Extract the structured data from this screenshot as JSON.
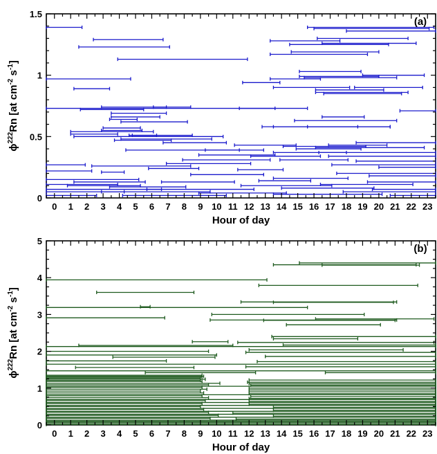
{
  "chart_data": [
    {
      "type": "interval",
      "panel_label": "(a)",
      "xlabel": "Hour of day",
      "ylabel_parts": {
        "pre": "ϕ",
        "sup1": "222",
        "mid": "Rn [at cm",
        "sup2": "-2",
        "mid2": " s",
        "sup3": "-1",
        "post": "]"
      },
      "xlim": [
        -0.5,
        23.5
      ],
      "ylim": [
        0,
        1.5
      ],
      "xticks": [
        "0",
        "1",
        "2",
        "3",
        "4",
        "5",
        "6",
        "7",
        "8",
        "9",
        "10",
        "11",
        "12",
        "13",
        "14",
        "15",
        "16",
        "17",
        "18",
        "19",
        "20",
        "21",
        "22",
        "23"
      ],
      "yticks": [
        {
          "v": 0,
          "t": "0"
        },
        {
          "v": 0.5,
          "t": "0.5"
        },
        {
          "v": 1,
          "t": "1"
        },
        {
          "v": 1.5,
          "t": "1.5"
        }
      ],
      "color": "#1a1acc",
      "intervals": [
        [
          -0.5,
          1.7,
          1.39
        ],
        [
          15.6,
          23.4,
          1.39
        ],
        [
          16.0,
          23.1,
          1.38
        ],
        [
          18.0,
          23.5,
          1.36
        ],
        [
          2.4,
          6.7,
          1.29
        ],
        [
          16.2,
          21.8,
          1.3
        ],
        [
          1.5,
          7.1,
          1.23
        ],
        [
          14.5,
          20.6,
          1.25
        ],
        [
          13.3,
          17.6,
          1.28
        ],
        [
          16.5,
          22.3,
          1.26
        ],
        [
          13.3,
          19.3,
          1.17
        ],
        [
          14.6,
          20.0,
          1.19
        ],
        [
          3.9,
          11.9,
          1.13
        ],
        [
          -0.5,
          4.7,
          0.97
        ],
        [
          15.1,
          18.9,
          1.03
        ],
        [
          15.1,
          20.0,
          0.99
        ],
        [
          19.0,
          22.8,
          1.0
        ],
        [
          15.4,
          21.1,
          0.98
        ],
        [
          11.6,
          13.9,
          0.94
        ],
        [
          13.3,
          16.4,
          0.97
        ],
        [
          1.2,
          3.4,
          0.89
        ],
        [
          13.5,
          18.2,
          0.9
        ],
        [
          18.5,
          22.7,
          0.9
        ],
        [
          16.1,
          20.3,
          0.88
        ],
        [
          16.1,
          21.8,
          0.86
        ],
        [
          16.6,
          21.4,
          0.85
        ],
        [
          -0.5,
          15.6,
          0.73
        ],
        [
          1.6,
          5.5,
          0.72
        ],
        [
          2.9,
          6.9,
          0.74
        ],
        [
          6.1,
          8.4,
          0.74
        ],
        [
          11.4,
          13.6,
          0.73
        ],
        [
          21.3,
          23.5,
          0.71
        ],
        [
          3.5,
          6.9,
          0.69
        ],
        [
          3.5,
          6.5,
          0.66
        ],
        [
          3.4,
          5.1,
          0.64
        ],
        [
          4.1,
          8.2,
          0.62
        ],
        [
          16.5,
          19.1,
          0.66
        ],
        [
          14.8,
          21.1,
          0.63
        ],
        [
          15.6,
          20.7,
          0.58
        ],
        [
          13.5,
          18.7,
          0.58
        ],
        [
          12.8,
          20.7,
          0.58
        ],
        [
          3.0,
          5.3,
          0.57
        ],
        [
          2.9,
          5.4,
          0.55
        ],
        [
          1.0,
          6.1,
          0.54
        ],
        [
          1.0,
          3.9,
          0.52
        ],
        [
          4.6,
          6.3,
          0.51
        ],
        [
          4.8,
          8.5,
          0.51
        ],
        [
          1.2,
          10.4,
          0.5
        ],
        [
          4.1,
          9.7,
          0.48
        ],
        [
          3.7,
          7.2,
          0.47
        ],
        [
          6.7,
          10.6,
          0.45
        ],
        [
          18.6,
          23.5,
          0.45
        ],
        [
          11.1,
          14.9,
          0.43
        ],
        [
          14.1,
          19.2,
          0.42
        ],
        [
          16.9,
          20.5,
          0.43
        ],
        [
          4.4,
          11.4,
          0.39
        ],
        [
          9.3,
          12.9,
          0.39
        ],
        [
          14.9,
          18.9,
          0.4
        ],
        [
          16.1,
          22.8,
          0.41
        ],
        [
          13.5,
          18.0,
          0.37
        ],
        [
          16.3,
          23.5,
          0.37
        ],
        [
          8.9,
          13.6,
          0.35
        ],
        [
          12.1,
          16.4,
          0.34
        ],
        [
          16.9,
          23.5,
          0.34
        ],
        [
          7.9,
          13.3,
          0.31
        ],
        [
          13.9,
          18.1,
          0.31
        ],
        [
          18.6,
          23.5,
          0.3
        ],
        [
          6.9,
          12.1,
          0.28
        ],
        [
          -0.5,
          1.9,
          0.27
        ],
        [
          2.3,
          8.4,
          0.26
        ],
        [
          17.1,
          23.5,
          0.27
        ],
        [
          5.8,
          8.9,
          0.24
        ],
        [
          11.3,
          14.1,
          0.23
        ],
        [
          20.0,
          23.5,
          0.25
        ],
        [
          -0.5,
          2.3,
          0.22
        ],
        [
          2.9,
          4.3,
          0.21
        ],
        [
          8.4,
          12.9,
          0.19
        ],
        [
          17.4,
          23.5,
          0.2
        ],
        [
          19.4,
          23.5,
          0.18
        ],
        [
          -0.5,
          5.2,
          0.15
        ],
        [
          13.5,
          18.1,
          0.16
        ],
        [
          1.2,
          5.6,
          0.13
        ],
        [
          6.6,
          11.1,
          0.13
        ],
        [
          12.6,
          15.8,
          0.14
        ],
        [
          19.3,
          23.5,
          0.13
        ],
        [
          -0.5,
          3.9,
          0.11
        ],
        [
          0.8,
          5.3,
          0.1
        ],
        [
          3.4,
          8.1,
          0.09
        ],
        [
          11.5,
          17.1,
          0.1
        ],
        [
          16.4,
          22.1,
          0.11
        ],
        [
          -0.5,
          6.6,
          0.07
        ],
        [
          5.7,
          12.3,
          0.07
        ],
        [
          14.0,
          19.7,
          0.08
        ],
        [
          19.6,
          23.5,
          0.07
        ],
        [
          -0.5,
          4.3,
          0.05
        ],
        [
          2.9,
          9.6,
          0.05
        ],
        [
          8.9,
          14.3,
          0.04
        ],
        [
          17.8,
          23.5,
          0.05
        ],
        [
          -0.5,
          2.6,
          0.02
        ],
        [
          4.2,
          10.6,
          0.02
        ],
        [
          13.5,
          20.2,
          0.03
        ],
        [
          20.7,
          23.5,
          0.02
        ]
      ]
    },
    {
      "type": "interval",
      "panel_label": "(b)",
      "xlabel": "Hour of day",
      "ylabel_parts": {
        "pre": "ϕ",
        "sup1": "222",
        "mid": "Rn [at cm",
        "sup2": "-2",
        "mid2": " s",
        "sup3": "-1",
        "post": "]"
      },
      "xlim": [
        -0.5,
        23.5
      ],
      "ylim": [
        0,
        5
      ],
      "xticks": [
        "0",
        "1",
        "2",
        "3",
        "4",
        "5",
        "6",
        "7",
        "8",
        "9",
        "10",
        "11",
        "12",
        "13",
        "14",
        "15",
        "16",
        "17",
        "18",
        "19",
        "20",
        "21",
        "22",
        "23"
      ],
      "yticks": [
        {
          "v": 0,
          "t": "0"
        },
        {
          "v": 1,
          "t": "1"
        },
        {
          "v": 2,
          "t": "2"
        },
        {
          "v": 3,
          "t": "3"
        },
        {
          "v": 4,
          "t": "4"
        },
        {
          "v": 5,
          "t": "5"
        }
      ],
      "color": "#1e5a1e",
      "intervals": [
        [
          15.1,
          23.5,
          4.4
        ],
        [
          13.5,
          22.3,
          4.35
        ],
        [
          16.5,
          22.5,
          4.34
        ],
        [
          -0.5,
          13.1,
          3.94
        ],
        [
          12.6,
          22.4,
          3.79
        ],
        [
          2.6,
          8.6,
          3.6
        ],
        [
          11.5,
          21.1,
          3.34
        ],
        [
          13.5,
          20.9,
          3.33
        ],
        [
          -0.5,
          15.6,
          3.19
        ],
        [
          5.3,
          5.9,
          3.21
        ],
        [
          9.7,
          19.1,
          3.0
        ],
        [
          -0.5,
          6.8,
          2.91
        ],
        [
          9.6,
          21.1,
          2.85
        ],
        [
          12.9,
          21.0,
          2.84
        ],
        [
          16.1,
          23.4,
          2.88
        ],
        [
          14.3,
          20.1,
          2.72
        ],
        [
          13.4,
          23.5,
          2.4
        ],
        [
          13.5,
          18.7,
          2.34
        ],
        [
          8.5,
          10.7,
          2.26
        ],
        [
          11.3,
          23.4,
          2.24
        ],
        [
          1.5,
          11.0,
          2.16
        ],
        [
          -0.5,
          23.5,
          2.13
        ],
        [
          14.1,
          23.5,
          2.17
        ],
        [
          12.0,
          21.5,
          2.04
        ],
        [
          -0.5,
          9.5,
          2.0
        ],
        [
          11.8,
          23.5,
          1.97
        ],
        [
          -0.5,
          10.0,
          1.9
        ],
        [
          3.6,
          9.9,
          1.84
        ],
        [
          13.0,
          23.5,
          1.86
        ],
        [
          -0.5,
          6.9,
          1.74
        ],
        [
          12.5,
          23.5,
          1.72
        ],
        [
          -0.5,
          23.5,
          1.65
        ],
        [
          1.3,
          8.6,
          1.56
        ],
        [
          11.8,
          23.5,
          1.58
        ],
        [
          -0.5,
          23.5,
          1.47
        ],
        [
          5.6,
          12.4,
          1.42
        ],
        [
          16.7,
          23.5,
          1.42
        ],
        [
          -0.5,
          9.1,
          1.35
        ],
        [
          -0.5,
          9.2,
          1.32
        ],
        [
          -0.5,
          9.1,
          1.3
        ],
        [
          -0.5,
          9.0,
          1.27
        ],
        [
          -0.5,
          9.3,
          1.24
        ],
        [
          -0.5,
          9.0,
          1.21
        ],
        [
          12.0,
          23.5,
          1.22
        ],
        [
          -0.5,
          9.1,
          1.18
        ],
        [
          11.9,
          23.5,
          1.16
        ],
        [
          -0.5,
          10.2,
          1.13
        ],
        [
          12.0,
          23.5,
          1.12
        ],
        [
          -0.5,
          9.5,
          1.09
        ],
        [
          12.1,
          23.5,
          1.08
        ],
        [
          -0.5,
          23.5,
          1.05
        ],
        [
          -0.5,
          9.1,
          1.02
        ],
        [
          12.0,
          23.5,
          1.0
        ],
        [
          -0.5,
          9.4,
          0.97
        ],
        [
          12.0,
          23.5,
          0.95
        ],
        [
          -0.5,
          9.0,
          0.92
        ],
        [
          12.0,
          23.5,
          0.9
        ],
        [
          -0.5,
          9.2,
          0.87
        ],
        [
          12.0,
          23.5,
          0.85
        ],
        [
          -0.5,
          23.5,
          0.82
        ],
        [
          -0.5,
          9.1,
          0.79
        ],
        [
          12.1,
          23.5,
          0.77
        ],
        [
          -0.5,
          9.5,
          0.74
        ],
        [
          12.0,
          23.5,
          0.72
        ],
        [
          -0.5,
          23.5,
          0.69
        ],
        [
          -0.5,
          9.3,
          0.66
        ],
        [
          12.0,
          23.5,
          0.64
        ],
        [
          -0.5,
          23.5,
          0.61
        ],
        [
          -0.5,
          9.1,
          0.58
        ],
        [
          12.0,
          23.5,
          0.56
        ],
        [
          -0.5,
          23.5,
          0.53
        ],
        [
          -0.5,
          9.0,
          0.5
        ],
        [
          13.5,
          23.5,
          0.48
        ],
        [
          -0.5,
          23.5,
          0.45
        ],
        [
          -0.5,
          9.2,
          0.42
        ],
        [
          13.5,
          23.5,
          0.4
        ],
        [
          -0.5,
          23.5,
          0.37
        ],
        [
          -0.5,
          9.5,
          0.34
        ],
        [
          11.0,
          23.5,
          0.32
        ],
        [
          -0.5,
          23.5,
          0.29
        ],
        [
          -0.5,
          10.1,
          0.26
        ],
        [
          13.5,
          23.5,
          0.24
        ],
        [
          -0.5,
          23.5,
          0.21
        ],
        [
          -0.5,
          9.6,
          0.18
        ],
        [
          11.2,
          23.5,
          0.16
        ],
        [
          -0.5,
          23.5,
          0.13
        ],
        [
          -0.5,
          23.5,
          0.1
        ],
        [
          -0.5,
          23.5,
          0.07
        ],
        [
          -0.5,
          23.5,
          0.04
        ],
        [
          -0.5,
          23.5,
          0.01
        ]
      ]
    }
  ]
}
